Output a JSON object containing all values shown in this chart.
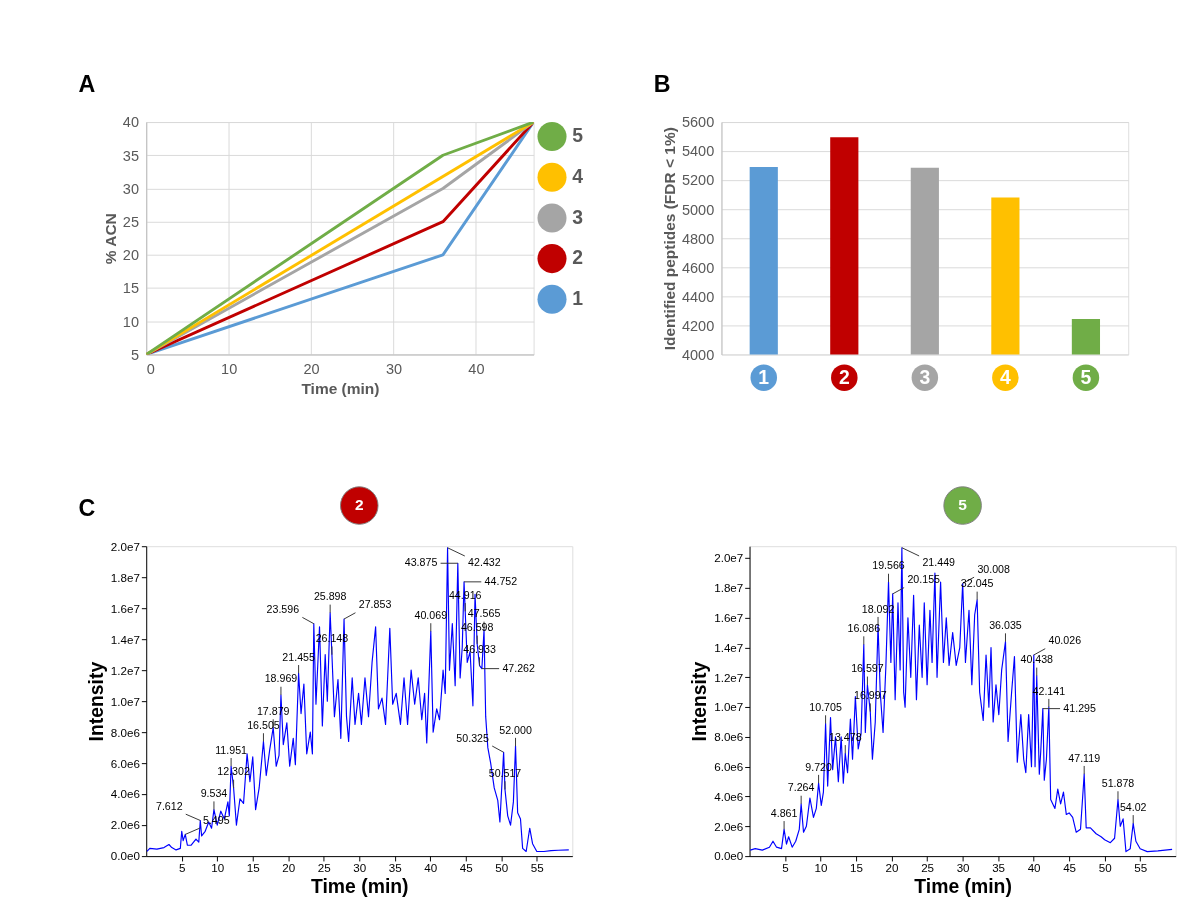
{
  "chart_data": [
    {
      "type": "line",
      "annotations": [
        "A"
      ],
      "xlabel": "Time (min)",
      "ylabel": "% ACN",
      "xlim": [
        0,
        47
      ],
      "xticks": [
        0,
        10,
        20,
        30,
        40
      ],
      "ylim": [
        5,
        40
      ],
      "yticks": [
        5,
        10,
        15,
        20,
        25,
        30,
        35,
        40
      ],
      "grid": true,
      "legend": "right",
      "series": [
        {
          "name": "1",
          "color": "#5b9bd5",
          "x": [
            0,
            36,
            47
          ],
          "values": [
            5,
            20,
            40
          ]
        },
        {
          "name": "2",
          "color": "#c00000",
          "x": [
            0,
            36,
            47
          ],
          "values": [
            5,
            25,
            40
          ]
        },
        {
          "name": "3",
          "color": "#a5a5a5",
          "x": [
            0,
            36,
            47
          ],
          "values": [
            5,
            30,
            40
          ]
        },
        {
          "name": "4",
          "color": "#ffc000",
          "x": [
            0,
            47
          ],
          "values": [
            5,
            40
          ]
        },
        {
          "name": "5",
          "color": "#70ad47",
          "x": [
            0,
            36,
            47
          ],
          "values": [
            5,
            35,
            40
          ]
        }
      ]
    },
    {
      "type": "bar",
      "annotations": [
        "B"
      ],
      "ylabel": "Identified peptides (FDR < 1%)",
      "categories": [
        "1",
        "2",
        "3",
        "4",
        "5"
      ],
      "values": [
        5290,
        5495,
        5285,
        5080,
        4245
      ],
      "colors": [
        "#5b9bd5",
        "#c00000",
        "#a5a5a5",
        "#ffc000",
        "#70ad47"
      ],
      "ylim": [
        4000,
        5600
      ],
      "yticks": [
        4000,
        4200,
        4400,
        4600,
        4800,
        5000,
        5200,
        5400,
        5600
      ],
      "grid": "y"
    },
    {
      "type": "line",
      "title": "2",
      "xlabel": "Time (min)",
      "ylabel": "Intensity",
      "xlim": [
        0,
        60
      ],
      "xticks": [
        5,
        10,
        15,
        20,
        25,
        30,
        35,
        40,
        45,
        50,
        55
      ],
      "ylim": [
        0,
        20000000
      ],
      "yticks": [
        {
          "value": 0,
          "label": "0.0e0"
        },
        {
          "value": 2000000,
          "label": "2.0e6"
        },
        {
          "value": 4000000,
          "label": "4.0e6"
        },
        {
          "value": 6000000,
          "label": "6.0e6"
        },
        {
          "value": 8000000,
          "label": "8.0e6"
        },
        {
          "value": 10000000,
          "label": "1.0e7"
        },
        {
          "value": 12000000,
          "label": "1.2e7"
        },
        {
          "value": 14000000,
          "label": "1.4e7"
        },
        {
          "value": 16000000,
          "label": "1.6e7"
        },
        {
          "value": 18000000,
          "label": "1.8e7"
        },
        {
          "value": 20000000,
          "label": "2.0e7"
        }
      ],
      "annotations": [
        "C",
        {
          "text": "5.495",
          "x": 5.495,
          "y": 1400000.0
        },
        {
          "text": "7.612",
          "x": 7.612,
          "y": 2300000.0
        },
        {
          "text": "9.534",
          "x": 9.534,
          "y": 3000000.0
        },
        {
          "text": "11.951",
          "x": 11.951,
          "y": 5800000.0
        },
        {
          "text": "12.302",
          "x": 12.302,
          "y": 4400000.0
        },
        {
          "text": "16.505",
          "x": 16.505,
          "y": 7400000.0
        },
        {
          "text": "17.879",
          "x": 17.879,
          "y": 8300000.0
        },
        {
          "text": "18.969",
          "x": 18.969,
          "y": 10400000.0
        },
        {
          "text": "21.455",
          "x": 21.455,
          "y": 11800000.0
        },
        {
          "text": "23.596",
          "x": 23.596,
          "y": 15000000.0
        },
        {
          "text": "25.898",
          "x": 25.898,
          "y": 15700000.0
        },
        {
          "text": "26.148",
          "x": 26.148,
          "y": 13000000.0
        },
        {
          "text": "27.853",
          "x": 27.853,
          "y": 15300000.0
        },
        {
          "text": "40.069",
          "x": 40.069,
          "y": 14500000.0
        },
        {
          "text": "42.432",
          "x": 42.432,
          "y": 19900000.0
        },
        {
          "text": "43.875",
          "x": 43.875,
          "y": 18900000.0
        },
        {
          "text": "44.752",
          "x": 44.752,
          "y": 17700000.0
        },
        {
          "text": "44.916",
          "x": 44.916,
          "y": 15800000.0
        },
        {
          "text": "46.598",
          "x": 46.598,
          "y": 13700000.0
        },
        {
          "text": "46.933",
          "x": 46.933,
          "y": 12300000.0
        },
        {
          "text": "47.262",
          "x": 47.262,
          "y": 12100000.0
        },
        {
          "text": "47.565",
          "x": 47.565,
          "y": 14600000.0
        },
        {
          "text": "50.325",
          "x": 50.325,
          "y": 6700000.0
        },
        {
          "text": "50.517",
          "x": 50.517,
          "y": 4300000.0
        },
        {
          "text": "52.000",
          "x": 52.0,
          "y": 7100000.0
        }
      ],
      "series": [
        {
          "color": "#0000ff",
          "x": [
            0.1,
            0.5,
            1.5,
            2.5,
            3.2,
            3.6,
            4.2,
            4.8,
            5.0,
            5.2,
            5.495,
            5.8,
            6.3,
            7.0,
            7.4,
            7.612,
            7.8,
            8.3,
            8.8,
            9.2,
            9.534,
            10.0,
            10.5,
            11.0,
            11.5,
            11.7,
            11.951,
            12.302,
            12.7,
            13.2,
            13.7,
            14.2,
            14.6,
            15.0,
            15.4,
            15.9,
            16.505,
            16.9,
            17.4,
            17.879,
            18.3,
            18.7,
            18.969,
            19.3,
            19.8,
            20.2,
            20.7,
            21.0,
            21.455,
            21.8,
            22.2,
            22.6,
            23.1,
            23.4,
            23.596,
            23.9,
            24.4,
            24.8,
            25.2,
            25.5,
            25.898,
            26.148,
            26.5,
            27.0,
            27.4,
            27.853,
            28.2,
            28.5,
            29.0,
            29.4,
            29.9,
            30.3,
            30.8,
            31.3,
            31.8,
            32.3,
            32.7,
            33.2,
            33.7,
            34.3,
            34.7,
            35.2,
            35.8,
            36.3,
            36.8,
            37.3,
            37.8,
            38.3,
            38.8,
            39.2,
            39.5,
            40.069,
            40.4,
            40.9,
            41.3,
            41.8,
            42.1,
            42.432,
            42.7,
            43.1,
            43.5,
            43.875,
            44.2,
            44.5,
            44.752,
            44.916,
            45.2,
            45.6,
            46.0,
            46.3,
            46.598,
            46.933,
            47.262,
            47.565,
            47.8,
            48.1,
            48.5,
            49.0,
            49.5,
            49.8,
            50.325,
            50.517,
            50.9,
            51.3,
            51.7,
            52.0,
            52.3,
            52.7,
            53.0,
            53.5,
            54.0,
            54.4,
            55.0,
            56.0,
            57.0,
            58.0,
            59.5
          ],
          "values": [
            300000.0,
            500000.0,
            450000.0,
            550000.0,
            750000.0,
            550000.0,
            400000.0,
            500000.0,
            1600000.0,
            1000000.0,
            1400000.0,
            700000.0,
            700000.0,
            1100000.0,
            900000.0,
            2300000.0,
            1300000.0,
            1600000.0,
            2200000.0,
            1800000.0,
            3000000.0,
            2000000.0,
            2900000.0,
            2400000.0,
            3500000.0,
            2600000.0,
            5800000.0,
            4400000.0,
            2000000.0,
            3700000.0,
            3400000.0,
            6600000.0,
            4800000.0,
            6400000.0,
            3000000.0,
            4400000.0,
            7400000.0,
            5200000.0,
            6900000.0,
            8300000.0,
            5800000.0,
            6500000.0,
            10400000.0,
            7200000.0,
            8600000.0,
            5800000.0,
            7600000.0,
            5900000.0,
            11800000.0,
            9200000.0,
            11100000.0,
            6600000.0,
            8000000.0,
            6600000.0,
            15000000.0,
            9800000.0,
            14800000.0,
            8400000.0,
            13000000.0,
            10000000.0,
            15700000.0,
            13000000.0,
            9000000.0,
            11400000.0,
            7600000.0,
            15300000.0,
            9000000.0,
            7400000.0,
            11500000.0,
            8500000.0,
            10500000.0,
            8500000.0,
            11500000.0,
            9000000.0,
            12500000.0,
            14800000.0,
            9500000.0,
            10200000.0,
            8500000.0,
            14700000.0,
            9800000.0,
            10500000.0,
            8500000.0,
            11500000.0,
            8500000.0,
            12000000.0,
            9800000.0,
            11500000.0,
            8800000.0,
            10500000.0,
            7300000.0,
            14500000.0,
            8000000.0,
            9500000.0,
            8800000.0,
            12000000.0,
            10500000.0,
            19900000.0,
            12000000.0,
            15000000.0,
            11000000.0,
            18900000.0,
            11500000.0,
            13500000.0,
            17700000.0,
            15800000.0,
            12500000.0,
            13200000.0,
            9700000.0,
            16900000.0,
            13700000.0,
            12300000.0,
            12100000.0,
            14600000.0,
            9000000.0,
            7000000.0,
            6000000.0,
            4400000.0,
            3600000.0,
            2200000.0,
            6700000.0,
            4300000.0,
            2600000.0,
            2000000.0,
            3500000.0,
            7100000.0,
            2800000.0,
            2400000.0,
            500000.0,
            300000.0,
            1800000.0,
            800000.0,
            300000.0,
            300000.0,
            350000.0,
            380000.0,
            400000.0
          ]
        }
      ]
    },
    {
      "type": "line",
      "title": "5",
      "xlabel": "Time (min)",
      "ylabel": "Intensity",
      "xlim": [
        0,
        60
      ],
      "xticks": [
        5,
        10,
        15,
        20,
        25,
        30,
        35,
        40,
        45,
        50,
        55
      ],
      "ylim": [
        0,
        20800000
      ],
      "yticks": [
        {
          "value": 0,
          "label": "0.0e0"
        },
        {
          "value": 2000000,
          "label": "2.0e6"
        },
        {
          "value": 4000000,
          "label": "4.0e6"
        },
        {
          "value": 6000000,
          "label": "6.0e6"
        },
        {
          "value": 8000000,
          "label": "8.0e6"
        },
        {
          "value": 10000000,
          "label": "1.0e7"
        },
        {
          "value": 12000000,
          "label": "1.2e7"
        },
        {
          "value": 14000000,
          "label": "1.4e7"
        },
        {
          "value": 16000000,
          "label": "1.6e7"
        },
        {
          "value": 18000000,
          "label": "1.8e7"
        },
        {
          "value": 20000000,
          "label": "2.0e7"
        }
      ],
      "annotations": [
        {
          "text": "4.861",
          "x": 4.861,
          "y": 1800000.0
        },
        {
          "text": "7.264",
          "x": 7.264,
          "y": 3500000.0
        },
        {
          "text": "9.720",
          "x": 9.72,
          "y": 4900000.0
        },
        {
          "text": "10.705",
          "x": 10.705,
          "y": 8900000.0
        },
        {
          "text": "13.478",
          "x": 13.478,
          "y": 6900000.0
        },
        {
          "text": "16.086",
          "x": 16.086,
          "y": 14200000.0
        },
        {
          "text": "16.597",
          "x": 16.597,
          "y": 11500000.0
        },
        {
          "text": "16.997",
          "x": 16.997,
          "y": 9700000.0
        },
        {
          "text": "18.092",
          "x": 18.092,
          "y": 15500000.0
        },
        {
          "text": "19.566",
          "x": 19.566,
          "y": 18400000.0
        },
        {
          "text": "20.155",
          "x": 20.155,
          "y": 17600000.0
        },
        {
          "text": "21.449",
          "x": 21.449,
          "y": 20700000.0
        },
        {
          "text": "30.008",
          "x": 30.008,
          "y": 18300000.0
        },
        {
          "text": "32.045",
          "x": 32.045,
          "y": 17200000.0
        },
        {
          "text": "36.035",
          "x": 36.035,
          "y": 14400000.0
        },
        {
          "text": "40.026",
          "x": 40.026,
          "y": 13500000.0
        },
        {
          "text": "40.438",
          "x": 40.438,
          "y": 12100000.0
        },
        {
          "text": "41.295",
          "x": 41.295,
          "y": 9900000.0
        },
        {
          "text": "42.141",
          "x": 42.141,
          "y": 10000000.0
        },
        {
          "text": "47.119",
          "x": 47.119,
          "y": 5500000.0
        },
        {
          "text": "51.878",
          "x": 51.878,
          "y": 3800000.0
        },
        {
          "text": "54.02",
          "x": 54.02,
          "y": 2200000.0
        }
      ],
      "series": [
        {
          "color": "#0000ff",
          "x": [
            0.1,
            0.8,
            1.8,
            2.8,
            3.3,
            3.8,
            4.5,
            4.861,
            5.2,
            5.5,
            6.0,
            6.5,
            7.0,
            7.264,
            7.6,
            8.0,
            8.5,
            9.0,
            9.4,
            9.72,
            10.1,
            10.4,
            10.705,
            11.0,
            11.4,
            11.7,
            12.1,
            12.5,
            12.9,
            13.2,
            13.478,
            13.8,
            14.2,
            14.5,
            14.9,
            15.3,
            15.7,
            16.086,
            16.3,
            16.597,
            16.997,
            17.3,
            17.7,
            18.092,
            18.4,
            18.8,
            19.2,
            19.566,
            19.9,
            20.155,
            20.5,
            20.9,
            21.2,
            21.449,
            21.7,
            21.9,
            22.3,
            22.7,
            23.1,
            23.5,
            23.9,
            24.3,
            24.6,
            25.0,
            25.4,
            25.7,
            26.1,
            26.4,
            26.9,
            27.3,
            27.7,
            28.1,
            28.6,
            29.1,
            29.6,
            30.008,
            30.4,
            30.9,
            31.3,
            31.7,
            32.045,
            32.4,
            32.9,
            33.3,
            33.7,
            34.0,
            34.3,
            34.7,
            35.1,
            35.5,
            36.035,
            36.4,
            36.9,
            37.3,
            37.7,
            38.2,
            38.6,
            38.9,
            39.3,
            39.7,
            40.026,
            40.2,
            40.438,
            40.8,
            41.0,
            41.295,
            41.5,
            41.8,
            42.141,
            42.4,
            43.0,
            43.4,
            43.8,
            44.2,
            44.6,
            45.0,
            45.5,
            46.0,
            46.6,
            47.119,
            47.4,
            48.0,
            48.8,
            49.5,
            50.0,
            50.8,
            51.4,
            51.878,
            52.2,
            52.6,
            53.0,
            53.6,
            54.02,
            54.4,
            55.0,
            56.0,
            57.5,
            59.5
          ],
          "values": [
            400000.0,
            500000.0,
            400000.0,
            600000.0,
            1000000.0,
            600000.0,
            500000.0,
            1800000.0,
            800000.0,
            1300000.0,
            600000.0,
            1000000.0,
            1800000.0,
            3500000.0,
            1600000.0,
            2000000.0,
            3900000.0,
            2600000.0,
            3200000.0,
            4900000.0,
            3400000.0,
            4300000.0,
            8900000.0,
            4700000.0,
            9300000.0,
            5800000.0,
            8000000.0,
            5000000.0,
            8000000.0,
            4900000.0,
            6900000.0,
            5600000.0,
            9200000.0,
            6500000.0,
            10700000.0,
            7200000.0,
            8200000.0,
            14200000.0,
            8300000.0,
            11500000.0,
            9700000.0,
            6500000.0,
            9000000.0,
            15500000.0,
            11000000.0,
            8300000.0,
            12800000.0,
            18400000.0,
            13000000.0,
            17600000.0,
            10500000.0,
            17000000.0,
            12500000.0,
            20700000.0,
            11000000.0,
            10000000.0,
            16000000.0,
            12000000.0,
            17500000.0,
            10500000.0,
            15500000.0,
            12000000.0,
            17000000.0,
            11500000.0,
            16500000.0,
            13000000.0,
            19000000.0,
            12000000.0,
            18400000.0,
            13000000.0,
            16000000.0,
            12800000.0,
            15000000.0,
            12800000.0,
            14000000.0,
            18300000.0,
            13000000.0,
            16500000.0,
            11500000.0,
            16200000.0,
            17200000.0,
            11000000.0,
            9100000.0,
            13500000.0,
            10000000.0,
            14000000.0,
            9000000.0,
            11500000.0,
            9500000.0,
            12500000.0,
            14400000.0,
            7700000.0,
            11000000.0,
            13400000.0,
            6300000.0,
            9500000.0,
            6500000.0,
            5600000.0,
            9500000.0,
            6000000.0,
            13500000.0,
            6000000.0,
            12100000.0,
            5500000.0,
            7000000.0,
            9900000.0,
            5100000.0,
            6500000.0,
            10000000.0,
            3800000.0,
            3200000.0,
            4500000.0,
            3500000.0,
            4300000.0,
            2800000.0,
            2900000.0,
            2600000.0,
            1600000.0,
            1800000.0,
            5500000.0,
            1900000.0,
            1900000.0,
            1500000.0,
            1300000.0,
            1100000.0,
            900000.0,
            1200000.0,
            3800000.0,
            2000000.0,
            2500000.0,
            300000.0,
            500000.0,
            2200000.0,
            1000000.0,
            500000.0,
            300000.0,
            350000.0,
            450000.0
          ]
        }
      ]
    }
  ]
}
